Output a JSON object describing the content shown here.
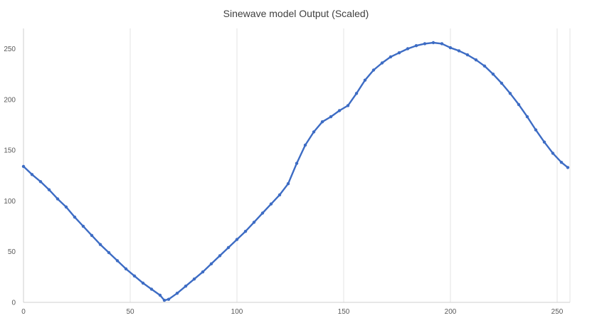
{
  "chart_data": {
    "type": "line",
    "title": "Sinewave model Output (Scaled)",
    "xlabel": "",
    "ylabel": "",
    "xlim": [
      0,
      256
    ],
    "ylim": [
      0,
      270
    ],
    "xticks": [
      0,
      50,
      100,
      150,
      200,
      250
    ],
    "yticks": [
      0,
      50,
      100,
      150,
      200,
      250
    ],
    "grid": "vertical",
    "legend": "none",
    "series_color": "#3d6cc4",
    "series": [
      {
        "x": [
          0,
          4,
          8,
          12,
          16,
          20,
          24,
          28,
          32,
          36,
          40,
          44,
          48,
          52,
          56,
          60,
          64,
          66,
          68,
          72,
          76,
          80,
          84,
          88,
          92,
          96,
          100,
          104,
          108,
          112,
          116,
          120,
          124,
          128,
          132,
          136,
          140,
          144,
          148,
          152,
          156,
          160,
          164,
          168,
          172,
          176,
          180,
          184,
          188,
          192,
          196,
          200,
          204,
          208,
          212,
          216,
          220,
          224,
          228,
          232,
          236,
          240,
          244,
          248,
          252,
          255
        ],
        "y": [
          134,
          126,
          119,
          111,
          102,
          94,
          84,
          75,
          66,
          57,
          49,
          41,
          33,
          26,
          19,
          13,
          7,
          2,
          3,
          9,
          16,
          23,
          30,
          38,
          46,
          54,
          62,
          70,
          79,
          88,
          97,
          106,
          117,
          137,
          155,
          168,
          178,
          183,
          189,
          194,
          206,
          219,
          229,
          236,
          242,
          246,
          250,
          253,
          255,
          256,
          255,
          251,
          248,
          244,
          239,
          233,
          225,
          216,
          206,
          195,
          183,
          170,
          158,
          147,
          138,
          133
        ]
      }
    ]
  }
}
